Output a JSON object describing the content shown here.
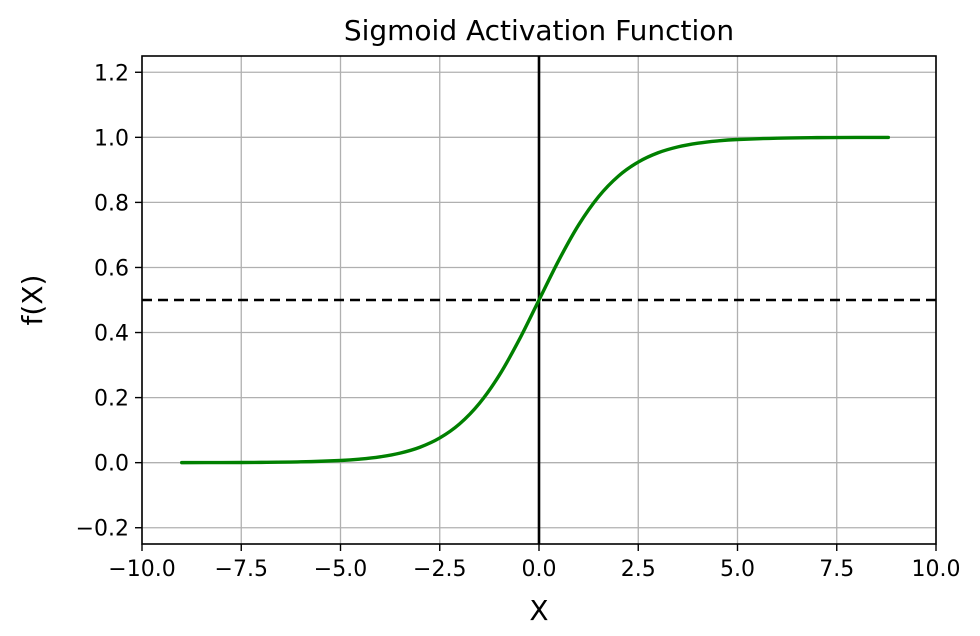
{
  "chart_data": {
    "type": "line",
    "title": "Sigmoid Activation Function",
    "xlabel": "X",
    "ylabel": "f(X)",
    "xlim": [
      -10.0,
      10.0
    ],
    "ylim": [
      -0.25,
      1.25
    ],
    "xticks": [
      -10.0,
      -7.5,
      -5.0,
      -2.5,
      0.0,
      2.5,
      5.0,
      7.5,
      10.0
    ],
    "xtick_labels": [
      "−10.0",
      "−7.5",
      "−5.0",
      "−2.5",
      "0.0",
      "2.5",
      "5.0",
      "7.5",
      "10.0"
    ],
    "yticks": [
      -0.2,
      0.0,
      0.2,
      0.4,
      0.6,
      0.8,
      1.0,
      1.2
    ],
    "ytick_labels": [
      "−0.2",
      "0.0",
      "0.2",
      "0.4",
      "0.6",
      "0.8",
      "1.0",
      "1.2"
    ],
    "grid": true,
    "series": [
      {
        "color": "#008000",
        "style": "solid",
        "x": [
          -9.0,
          -8.0,
          -7.0,
          -6.0,
          -5.0,
          -4.5,
          -4.0,
          -3.5,
          -3.0,
          -2.5,
          -2.0,
          -1.5,
          -1.0,
          -0.5,
          0.0,
          0.5,
          1.0,
          1.5,
          2.0,
          2.5,
          3.0,
          3.5,
          4.0,
          4.5,
          5.0,
          6.0,
          7.0,
          8.0,
          8.8
        ],
        "y": [
          0.0001,
          0.0003,
          0.0009,
          0.0025,
          0.0067,
          0.011,
          0.018,
          0.0293,
          0.0474,
          0.0759,
          0.1192,
          0.1824,
          0.2689,
          0.3775,
          0.5,
          0.6225,
          0.7311,
          0.8176,
          0.8808,
          0.9241,
          0.9526,
          0.9707,
          0.982,
          0.989,
          0.9933,
          0.9975,
          0.9991,
          0.9997,
          0.9998
        ]
      }
    ],
    "reference_lines": [
      {
        "orientation": "vertical",
        "value": 0.0,
        "color": "#000000",
        "style": "solid"
      },
      {
        "orientation": "horizontal",
        "value": 0.5,
        "color": "#000000",
        "style": "dashed"
      }
    ]
  }
}
